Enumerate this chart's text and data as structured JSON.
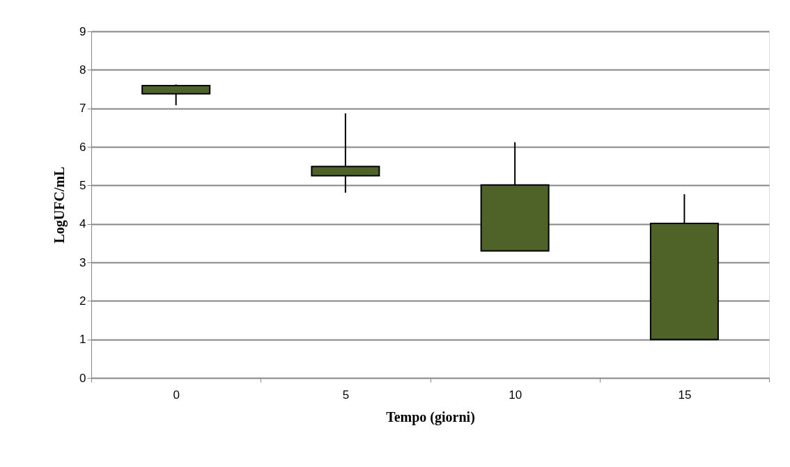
{
  "chart_data": {
    "type": "candlestick",
    "xlabel": "Tempo (giorni)",
    "ylabel": "LogUFC/mL",
    "categories": [
      "0",
      "5",
      "10",
      "15"
    ],
    "ohlc": [
      [
        7.59,
        7.62,
        7.08,
        7.38
      ],
      [
        5.49,
        6.87,
        4.81,
        5.25
      ],
      [
        5.01,
        6.12,
        3.3,
        3.3
      ],
      [
        4.01,
        4.77,
        1.0,
        1.0
      ]
    ],
    "color": "#4f6228",
    "ylim": [
      0,
      9
    ],
    "yticks": [
      0,
      1,
      2,
      3,
      4,
      5,
      6,
      7,
      8,
      9
    ],
    "grid": "y"
  }
}
